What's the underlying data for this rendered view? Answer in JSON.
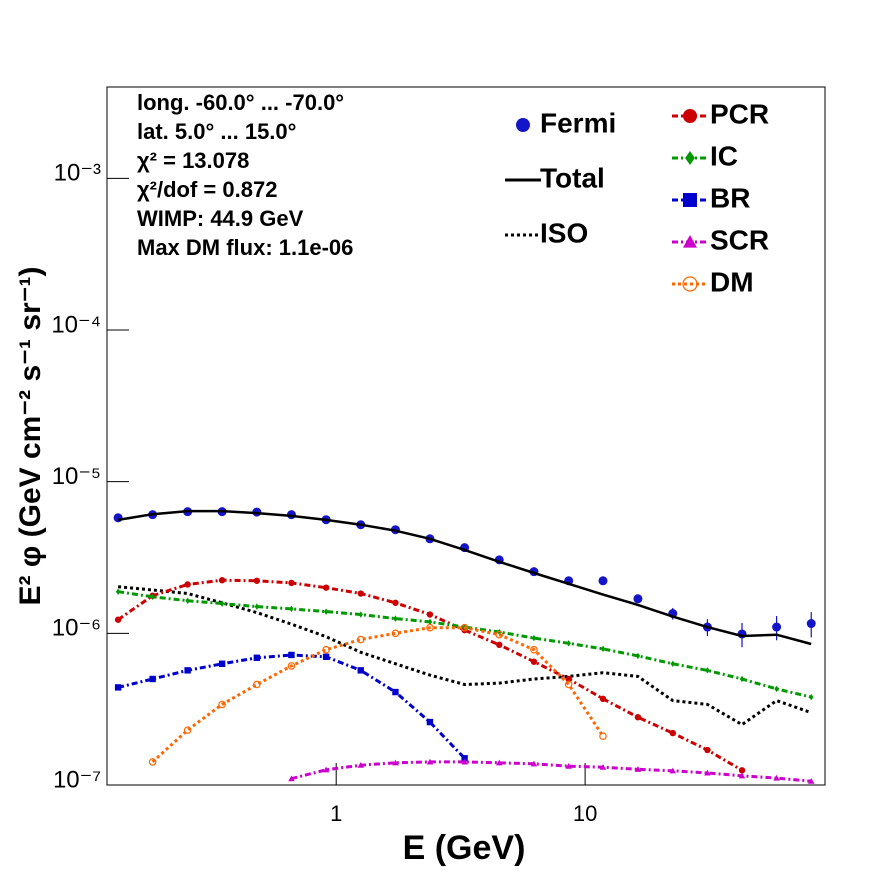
{
  "chart_data": {
    "type": "line",
    "x_label": "E (GeV)",
    "y_label": "E² φ (GeV cm⁻² s⁻¹ sr⁻¹)",
    "annotations": [
      "long. -60.0° ... -70.0°",
      "lat. 5.0° ... 15.0°",
      "χ² = 13.078",
      "χ²/dof = 0.872",
      "WIMP: 44.9 GeV",
      "Max DM flux: 1.1e-06"
    ],
    "xlog": true,
    "ylog": true,
    "xlim": [
      0.12,
      92
    ],
    "ylim": [
      1e-07,
      0.004
    ],
    "xticks": [
      1,
      10
    ],
    "yticks": [
      {
        "value": 1e-07,
        "label": "10⁻⁷"
      },
      {
        "value": 1e-06,
        "label": "10⁻⁶"
      },
      {
        "value": 1e-05,
        "label": "10⁻⁵"
      },
      {
        "value": 0.0001,
        "label": "10⁻⁴"
      },
      {
        "value": 0.001,
        "label": "10⁻³"
      }
    ],
    "x": [
      0.133,
      0.183,
      0.253,
      0.348,
      0.48,
      0.661,
      0.911,
      1.255,
      1.73,
      2.38,
      3.28,
      4.52,
      6.23,
      8.59,
      11.8,
      16.3,
      22.5,
      31.0,
      42.7,
      58.8,
      81.0
    ],
    "series": [
      {
        "name": "Fermi",
        "color": "#1414c8",
        "style": "points",
        "marker": "circle",
        "values": [
          5.78e-06,
          6.06e-06,
          6.34e-06,
          6.34e-06,
          6.3e-06,
          6.06e-06,
          5.61e-06,
          5.2e-06,
          4.82e-06,
          4.2e-06,
          3.67e-06,
          3.05e-06,
          2.55e-06,
          2.22e-06,
          2.22e-06,
          1.69e-06,
          1.35e-06,
          1.1e-06,
          9.9e-07,
          1.1e-06,
          1.16e-06
        ],
        "errors": [
          5e-08,
          5e-08,
          5e-08,
          5e-08,
          5e-08,
          5e-08,
          5e-08,
          5e-08,
          5e-08,
          5e-08,
          5e-08,
          5e-08,
          6e-08,
          7e-08,
          8e-08,
          1e-07,
          1.2e-07,
          1.4e-07,
          1.8e-07,
          2e-07,
          2.2e-07
        ]
      },
      {
        "name": "Total",
        "color": "#000000",
        "style": "solid",
        "marker": "none",
        "values": [
          5.6e-06,
          6.1e-06,
          6.4e-06,
          6.4e-06,
          6.2e-06,
          5.95e-06,
          5.6e-06,
          5.2e-06,
          4.75e-06,
          4.2e-06,
          3.55e-06,
          2.96e-06,
          2.5e-06,
          2.12e-06,
          1.8e-06,
          1.54e-06,
          1.29e-06,
          1.1e-06,
          9.6e-07,
          9.8e-07,
          8.5e-07
        ]
      },
      {
        "name": "ISO",
        "color": "#000000",
        "style": "dotted",
        "marker": "none",
        "values": [
          2.03e-06,
          1.93e-06,
          1.83e-06,
          1.59e-06,
          1.37e-06,
          1.15e-06,
          9.5e-07,
          7.5e-07,
          6.3e-07,
          5.3e-07,
          4.6e-07,
          4.7e-07,
          5e-07,
          5.2e-07,
          5.5e-07,
          5.2e-07,
          3.6e-07,
          3.4e-07,
          2.5e-07,
          3.6e-07,
          3e-07
        ]
      },
      {
        "name": "PCR",
        "color": "#cc0000",
        "style": "dashdot",
        "marker": "circle",
        "values": [
          1.23e-06,
          1.77e-06,
          2.1e-06,
          2.24e-06,
          2.22e-06,
          2.15e-06,
          2e-06,
          1.83e-06,
          1.59e-06,
          1.33e-06,
          1.05e-06,
          8.4e-07,
          6.5e-07,
          5e-07,
          3.7e-07,
          2.8e-07,
          2.2e-07,
          1.7e-07,
          1.25e-07,
          null,
          null
        ]
      },
      {
        "name": "IC",
        "color": "#009900",
        "style": "dashdot",
        "marker": "diamond",
        "values": [
          1.88e-06,
          1.74e-06,
          1.64e-06,
          1.57e-06,
          1.5e-06,
          1.45e-06,
          1.39e-06,
          1.33e-06,
          1.25e-06,
          1.19e-06,
          1.1e-06,
          1.02e-06,
          9.3e-07,
          8.6e-07,
          7.9e-07,
          7.1e-07,
          6.3e-07,
          5.7e-07,
          5e-07,
          4.3e-07,
          3.8e-07
        ]
      },
      {
        "name": "BR",
        "color": "#0000cc",
        "style": "dashdot",
        "marker": "square",
        "values": [
          4.4e-07,
          5e-07,
          5.7e-07,
          6.3e-07,
          6.9e-07,
          7.2e-07,
          7e-07,
          5.7e-07,
          4.1e-07,
          2.6e-07,
          1.5e-07,
          null,
          null,
          null,
          null,
          null,
          null,
          null,
          null,
          null,
          null
        ]
      },
      {
        "name": "SCR",
        "color": "#cc00cc",
        "style": "dashdot",
        "marker": "triangle",
        "values": [
          null,
          null,
          null,
          null,
          null,
          1.1e-07,
          1.26e-07,
          1.35e-07,
          1.4e-07,
          1.42e-07,
          1.42e-07,
          1.4e-07,
          1.38e-07,
          1.33e-07,
          1.31e-07,
          1.27e-07,
          1.24e-07,
          1.2e-07,
          1.15e-07,
          1.11e-07,
          1.06e-07
        ]
      },
      {
        "name": "DM",
        "color": "#ff6600",
        "style": "dotted",
        "marker": "open-circle",
        "values": [
          null,
          1.42e-07,
          2.3e-07,
          3.4e-07,
          4.6e-07,
          6.1e-07,
          7.8e-07,
          9.1e-07,
          1e-06,
          1.09e-06,
          1.09e-06,
          9.8e-07,
          7.8e-07,
          4.6e-07,
          2.1e-07,
          null,
          null,
          null,
          null,
          null,
          null
        ]
      }
    ]
  }
}
